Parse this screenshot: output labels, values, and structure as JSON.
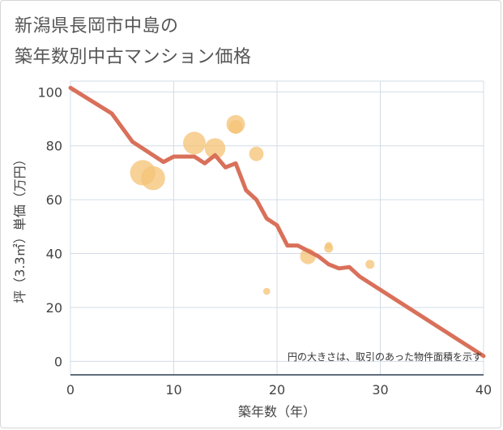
{
  "title": {
    "line1": "新潟県長岡市中島の",
    "line2": "築年数別中古マンション価格"
  },
  "chart_data": {
    "type": "scatter",
    "xlabel": "築年数（年）",
    "ylabel": "坪（3.3㎡）単価（万円）",
    "xlim": [
      0,
      40
    ],
    "ylim": [
      -5,
      104
    ],
    "x_ticks": [
      "0",
      "10",
      "20",
      "30",
      "40"
    ],
    "y_ticks": [
      "0",
      "20",
      "40",
      "60",
      "80",
      "100"
    ],
    "grid": true,
    "note": "円の大きさは、取引のあった物件面積を示す",
    "colors": {
      "bubble": "#f5c478",
      "line": "#d9705a",
      "grid": "#d3dce6",
      "plot_bg": "#ffffff",
      "axis": "#2c3e50"
    },
    "scatter_points": [
      {
        "x": 7,
        "y": 70,
        "size": 3.2
      },
      {
        "x": 8,
        "y": 68,
        "size": 3.0
      },
      {
        "x": 12,
        "y": 81,
        "size": 2.8
      },
      {
        "x": 14,
        "y": 79,
        "size": 2.5
      },
      {
        "x": 16,
        "y": 88,
        "size": 2.2
      },
      {
        "x": 16,
        "y": 87,
        "size": 1.5
      },
      {
        "x": 18,
        "y": 77,
        "size": 1.6
      },
      {
        "x": 19,
        "y": 26,
        "size": 0.5
      },
      {
        "x": 23,
        "y": 39,
        "size": 1.8
      },
      {
        "x": 25,
        "y": 42,
        "size": 0.8
      },
      {
        "x": 25,
        "y": 43,
        "size": 0.5
      },
      {
        "x": 29,
        "y": 36,
        "size": 0.8
      }
    ],
    "line_series": {
      "x": [
        0,
        4,
        6,
        9,
        10,
        12,
        13,
        14,
        15,
        16,
        17,
        18,
        19,
        20,
        21,
        22,
        23,
        24,
        25,
        26,
        27,
        28,
        40
      ],
      "y": [
        101.5,
        92,
        81.5,
        74,
        76,
        76,
        73.5,
        76.5,
        72,
        73.5,
        63.5,
        60,
        53,
        50.5,
        43,
        43,
        41,
        39,
        36,
        34.5,
        35,
        31.5,
        2
      ]
    }
  }
}
